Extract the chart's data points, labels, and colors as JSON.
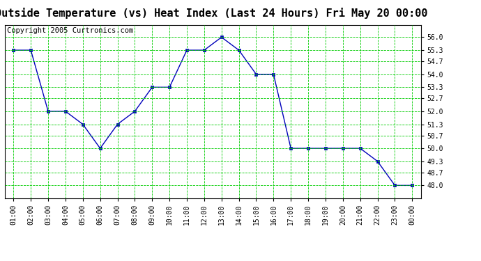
{
  "title": "Outside Temperature (vs) Heat Index (Last 24 Hours) Fri May 20 00:00",
  "copyright": "Copyright 2005 Curtronics.com",
  "x_labels": [
    "01:00",
    "02:00",
    "03:00",
    "04:00",
    "05:00",
    "06:00",
    "07:00",
    "08:00",
    "09:00",
    "10:00",
    "11:00",
    "12:00",
    "13:00",
    "14:00",
    "15:00",
    "16:00",
    "17:00",
    "18:00",
    "19:00",
    "20:00",
    "21:00",
    "22:00",
    "23:00",
    "00:00"
  ],
  "y_data": [
    55.3,
    55.3,
    52.0,
    52.0,
    51.3,
    50.0,
    51.3,
    52.0,
    53.3,
    53.3,
    55.3,
    55.3,
    56.0,
    55.3,
    54.0,
    54.0,
    50.0,
    50.0,
    50.0,
    50.0,
    50.0,
    49.3,
    48.0,
    48.0
  ],
  "ylim": [
    47.3,
    56.67
  ],
  "yticks": [
    48.0,
    48.7,
    49.3,
    50.0,
    50.7,
    51.3,
    52.0,
    52.7,
    53.3,
    54.0,
    54.7,
    55.3,
    56.0
  ],
  "ytick_labels": [
    "48.0",
    "48.7",
    "49.3",
    "50.0",
    "50.7",
    "51.3",
    "52.0",
    "52.7",
    "53.3",
    "54.0",
    "54.7",
    "55.3",
    "56.0"
  ],
  "line_color": "#0000bb",
  "grid_color": "#00cc00",
  "bg_color": "#ffffff",
  "title_fontsize": 11,
  "copyright_fontsize": 7.5,
  "tick_fontsize": 7,
  "marker_size": 3
}
